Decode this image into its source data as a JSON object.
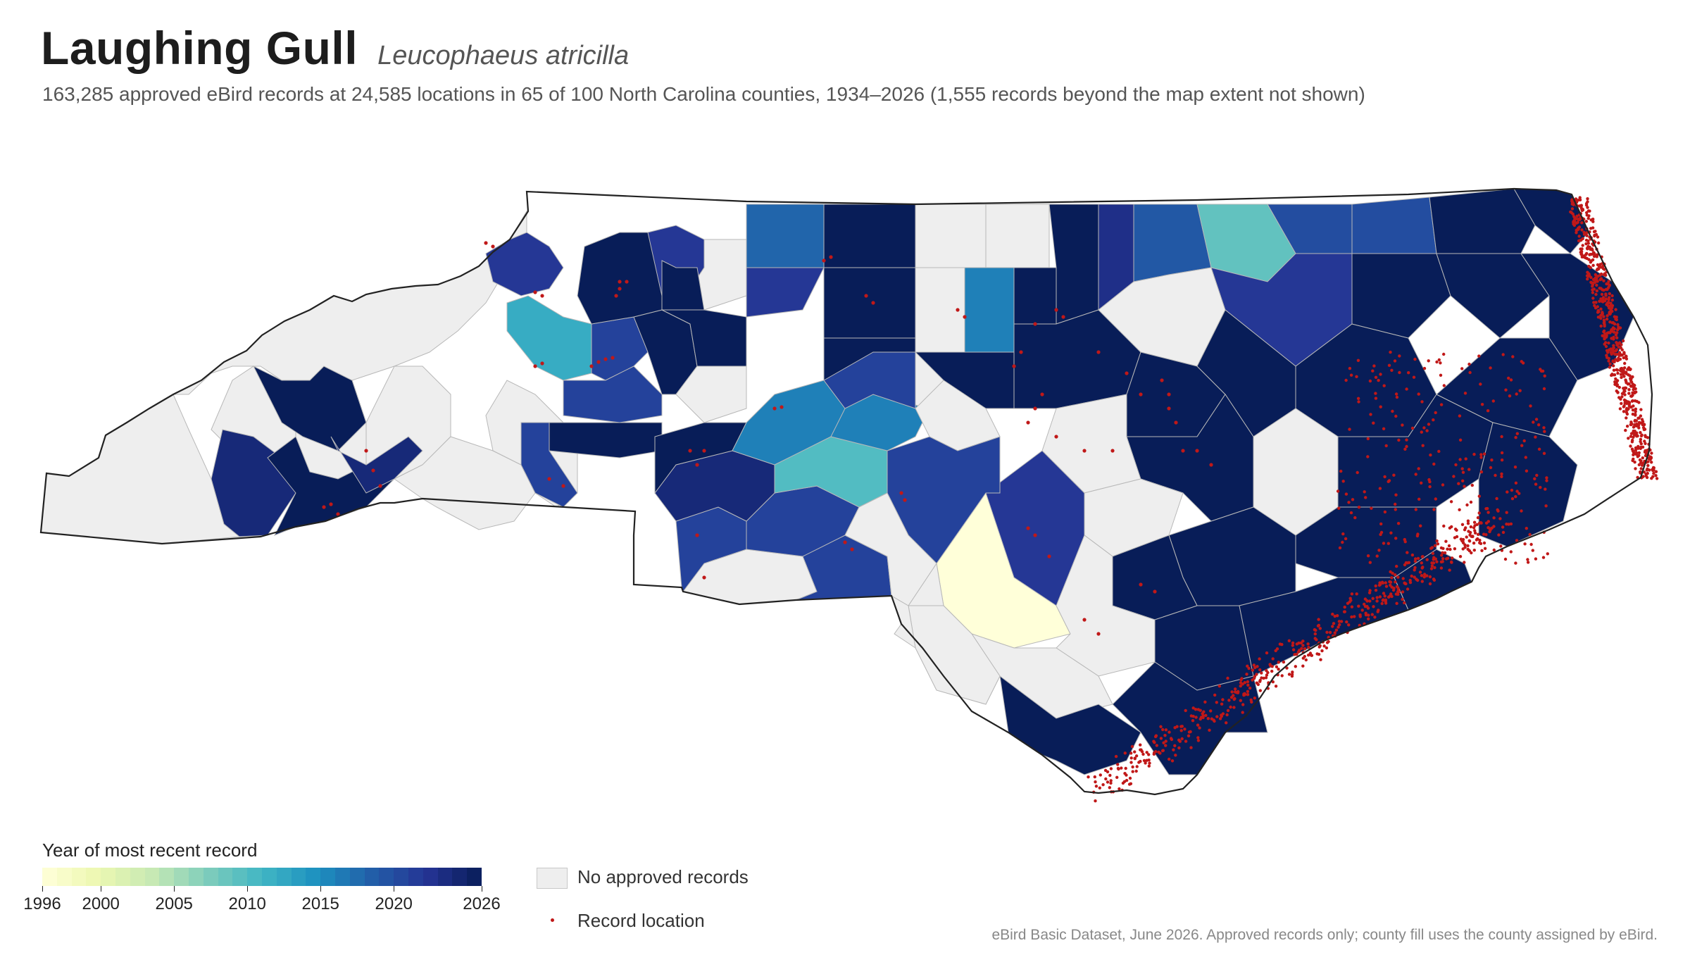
{
  "title": "Laughing Gull",
  "scientific_name": "Leucophaeus atricilla",
  "subtitle": "163,285 approved eBird records at 24,585 locations in 65 of 100 North Carolina counties, 1934–2026 (1,555 records beyond the map extent not shown)",
  "legend": {
    "title": "Year of most recent record",
    "ticks": [
      "1996",
      "2000",
      "2005",
      "2010",
      "2015",
      "2020",
      "2026"
    ],
    "tick_values": [
      1996,
      2000,
      2005,
      2010,
      2015,
      2020,
      2026
    ],
    "range": [
      1996,
      2026
    ],
    "gradient": [
      "#ffffd9",
      "#edf8b1",
      "#c7e9b4",
      "#7fcdbb",
      "#41b6c4",
      "#1d91c0",
      "#225ea8",
      "#253494",
      "#081d58"
    ],
    "no_records_label": "No approved records",
    "no_records_color": "#eeeeee",
    "record_location_label": "Record location",
    "record_color": "#c01818"
  },
  "source": "eBird Basic Dataset, June 2026. Approved records only; county fill uses the county assigned by eBird."
}
